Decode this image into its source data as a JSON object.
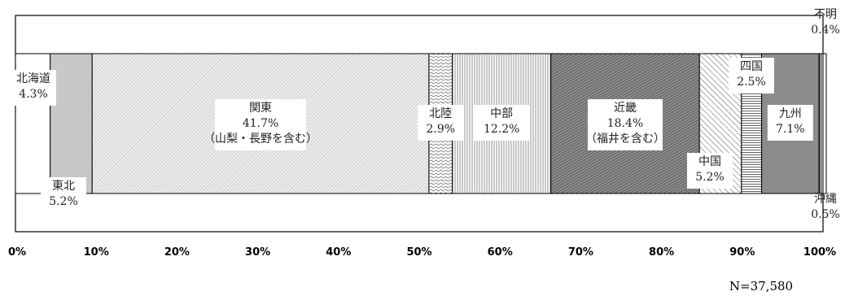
{
  "chart_data": {
    "type": "bar",
    "orientation": "horizontal",
    "stacked": true,
    "normalized": true,
    "xlim": [
      0,
      100
    ],
    "tick_labels": [
      "0%",
      "10%",
      "20%",
      "30%",
      "40%",
      "50%",
      "60%",
      "70%",
      "80%",
      "90%",
      "100%"
    ],
    "note": "N=37,580",
    "series": [
      {
        "name": "北海道",
        "value": 4.3,
        "label": "4.3%",
        "fill": "#ffffff"
      },
      {
        "name": "東北",
        "value": 5.2,
        "label": "5.2%",
        "fill": "#c8c8c8"
      },
      {
        "name": "関東",
        "value": 41.7,
        "label": "41.7%",
        "note": "（山梨・長野を含む）",
        "fill": "pat-fine"
      },
      {
        "name": "北陸",
        "value": 2.9,
        "label": "2.9%",
        "fill": "pat-waves"
      },
      {
        "name": "中部",
        "value": 12.2,
        "label": "12.2%",
        "fill": "pat-vlines"
      },
      {
        "name": "近畿",
        "value": 18.4,
        "label": "18.4%",
        "note": "（福井を含む）",
        "fill": "pat-dense"
      },
      {
        "name": "中国",
        "value": 5.2,
        "label": "5.2%",
        "fill": "pat-diag"
      },
      {
        "name": "四国",
        "value": 2.5,
        "label": "2.5%",
        "fill": "pat-hlines"
      },
      {
        "name": "九州",
        "value": 7.1,
        "label": "7.1%",
        "fill": "#8c8c8c"
      },
      {
        "name": "沖縄",
        "value": 0.5,
        "label": "0.5%",
        "fill": "pat-vlines-dark"
      },
      {
        "name": "不明",
        "value": 0.4,
        "label": "0.4%",
        "fill": "#ffffff"
      }
    ]
  }
}
